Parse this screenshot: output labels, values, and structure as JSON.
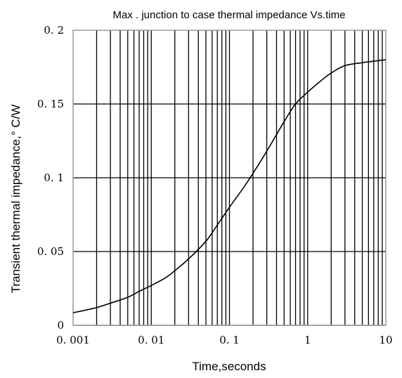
{
  "chart_data": {
    "type": "line",
    "title": "Max . junction to case thermal impedance Vs.time",
    "xlabel": "Time,seconds",
    "ylabel": "Transient thermal impedance,° C/W",
    "xscale": "log",
    "xlim": [
      0.001,
      10
    ],
    "ylim": [
      0,
      0.2
    ],
    "grid": true,
    "x_ticks": [
      {
        "value": 0.001,
        "label": "0. 001"
      },
      {
        "value": 0.01,
        "label": "0. 01"
      },
      {
        "value": 0.1,
        "label": "0. 1"
      },
      {
        "value": 1,
        "label": "1"
      },
      {
        "value": 10,
        "label": "10"
      }
    ],
    "y_ticks": [
      {
        "value": 0,
        "label": "0"
      },
      {
        "value": 0.05,
        "label": "0. 05"
      },
      {
        "value": 0.1,
        "label": "0. 1"
      },
      {
        "value": 0.15,
        "label": "0. 15"
      },
      {
        "value": 0.2,
        "label": "0. 2"
      }
    ],
    "series": [
      {
        "color": "#000000",
        "points": [
          {
            "x": 0.001,
            "y": 0.0085
          },
          {
            "x": 0.002,
            "y": 0.012
          },
          {
            "x": 0.003,
            "y": 0.015
          },
          {
            "x": 0.005,
            "y": 0.019
          },
          {
            "x": 0.007,
            "y": 0.023
          },
          {
            "x": 0.01,
            "y": 0.027
          },
          {
            "x": 0.015,
            "y": 0.032
          },
          {
            "x": 0.02,
            "y": 0.037
          },
          {
            "x": 0.03,
            "y": 0.045
          },
          {
            "x": 0.05,
            "y": 0.057
          },
          {
            "x": 0.07,
            "y": 0.068
          },
          {
            "x": 0.1,
            "y": 0.08
          },
          {
            "x": 0.15,
            "y": 0.093
          },
          {
            "x": 0.2,
            "y": 0.103
          },
          {
            "x": 0.3,
            "y": 0.118
          },
          {
            "x": 0.5,
            "y": 0.138
          },
          {
            "x": 0.7,
            "y": 0.15
          },
          {
            "x": 1,
            "y": 0.158
          },
          {
            "x": 1.5,
            "y": 0.166
          },
          {
            "x": 2,
            "y": 0.171
          },
          {
            "x": 3,
            "y": 0.176
          },
          {
            "x": 5,
            "y": 0.178
          },
          {
            "x": 7,
            "y": 0.179
          },
          {
            "x": 10,
            "y": 0.18
          }
        ]
      }
    ]
  }
}
